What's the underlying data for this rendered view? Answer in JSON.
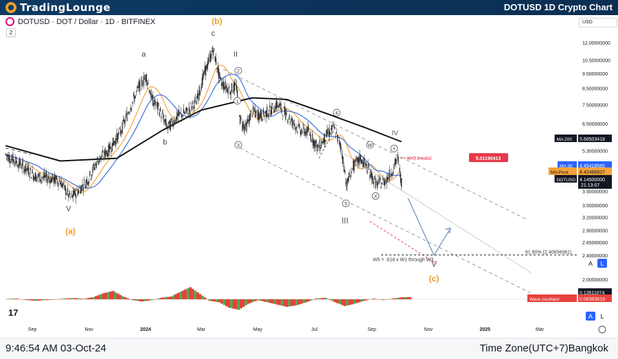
{
  "header": {
    "logo_text": "TradingLounge",
    "chart_title": "DOTUSD 1D Crypto Chart"
  },
  "symbol_bar": {
    "symbol_text": "DOTUSD · DOT / Dollar · 1D · BITFINEX",
    "indicator_count": "2",
    "currency": "USD"
  },
  "footer": {
    "time": "9:46:54 AM 03-Oct-24",
    "timezone": "Time Zone(UTC+7)Bangkok"
  },
  "axis_buttons": {
    "auto": "A",
    "log": "L"
  },
  "watermark": "17",
  "colors": {
    "header_bg": "#0e3a63",
    "accent_orange": "#e9a02c",
    "ma200": "#111111",
    "ma35": "#3b6fe0",
    "ma_pivot": "#f2a33a",
    "invalid_red": "#e53a4a",
    "osc_green": "#4caf50",
    "osc_red": "#e8413c",
    "arrow": "#8aa4c8"
  },
  "chart_data": {
    "type": "line",
    "title": "DOTUSD · DOT / Dollar · 1D · BITFINEX",
    "x_ticks": [
      "Sep",
      "Nov",
      "2024",
      "Mar",
      "May",
      "Jul",
      "Sep",
      "Nov",
      "2025",
      "Mar"
    ],
    "y_scale": "log",
    "y_ticks": [
      12.0,
      10.5,
      9.5,
      8.5,
      7.5,
      6.5,
      5.9,
      5.3,
      4.7,
      4.3,
      3.9,
      3.5,
      3.2,
      2.9,
      2.65,
      2.4,
      2.0
    ],
    "y_tick_labels": [
      "12.00000000",
      "10.50000000",
      "9.50000000",
      "8.50000000",
      "7.50000000",
      "6.50000000",
      "5.90000000",
      "5.30000000",
      "4.70000000",
      "4.30000000",
      "3.90000000",
      "3.50000000",
      "3.20000000",
      "2.90000000",
      "2.65000000",
      "2.40000000",
      "2.00000000"
    ],
    "series": [
      {
        "name": "DOTUSD",
        "points": [
          [
            "2023-08-03",
            5.15
          ],
          [
            "2023-08-20",
            4.75
          ],
          [
            "2023-09-05",
            4.35
          ],
          [
            "2023-09-20",
            4.3
          ],
          [
            "2023-10-01",
            4.2
          ],
          [
            "2023-10-12",
            3.7
          ],
          [
            "2023-10-20",
            3.9
          ],
          [
            "2023-11-01",
            4.3
          ],
          [
            "2023-11-10",
            4.9
          ],
          [
            "2023-11-22",
            5.3
          ],
          [
            "2023-12-05",
            6.1
          ],
          [
            "2023-12-15",
            7.3
          ],
          [
            "2023-12-25",
            8.6
          ],
          [
            "2024-01-02",
            9.3
          ],
          [
            "2024-01-08",
            7.8
          ],
          [
            "2024-01-15",
            7.3
          ],
          [
            "2024-01-25",
            6.3
          ],
          [
            "2024-02-05",
            6.9
          ],
          [
            "2024-02-15",
            7.1
          ],
          [
            "2024-02-25",
            7.7
          ],
          [
            "2024-03-05",
            9.6
          ],
          [
            "2024-03-14",
            11.4
          ],
          [
            "2024-03-22",
            8.9
          ],
          [
            "2024-04-01",
            8.4
          ],
          [
            "2024-04-08",
            8.6
          ],
          [
            "2024-04-12",
            6.7
          ],
          [
            "2024-04-18",
            6.3
          ],
          [
            "2024-04-25",
            7.1
          ],
          [
            "2024-05-05",
            6.9
          ],
          [
            "2024-05-15",
            7.2
          ],
          [
            "2024-05-22",
            7.5
          ],
          [
            "2024-05-28",
            7.2
          ],
          [
            "2024-06-07",
            6.6
          ],
          [
            "2024-06-15",
            6.2
          ],
          [
            "2024-06-25",
            6.1
          ],
          [
            "2024-07-05",
            5.4
          ],
          [
            "2024-07-15",
            6.0
          ],
          [
            "2024-07-22",
            6.3
          ],
          [
            "2024-07-30",
            5.4
          ],
          [
            "2024-08-05",
            4.1
          ],
          [
            "2024-08-12",
            4.7
          ],
          [
            "2024-08-20",
            5.0
          ],
          [
            "2024-08-28",
            4.6
          ],
          [
            "2024-09-06",
            4.1
          ],
          [
            "2024-09-15",
            4.2
          ],
          [
            "2024-09-22",
            4.5
          ],
          [
            "2024-09-29",
            5.0
          ],
          [
            "2024-10-03",
            4.145
          ]
        ]
      },
      {
        "name": "MA:200",
        "last_value": 5.66503418
      },
      {
        "name": "MA:35",
        "last_value": 4.45418585
      },
      {
        "name": "MA:Pivot",
        "last_value": 4.42466827
      }
    ],
    "price_labels": {
      "wc_invalid": "5.01190413",
      "ma200": "5.66503418",
      "ma35": "4.45418585",
      "ma_pivot": "4.42466827",
      "dotusd": "4.14500000",
      "countdown": "21:13:07",
      "osc1": "0.13511074",
      "osc2": "0.06363619"
    },
    "price_tags": {
      "ma200": "MA:200",
      "ma35": "MA:35",
      "ma_pivot": "MA:Pivot",
      "dotusd": "DOTUSD",
      "wave_osc": "Wave oscillator"
    },
    "wave_labels": [
      "(a)",
      "(b)",
      "(c)",
      "a",
      "b",
      "c",
      "I",
      "II",
      "III",
      "IV",
      "V",
      "V",
      "1",
      "2",
      "3",
      "4",
      "5",
      "W",
      "X",
      "Y"
    ],
    "annotations": {
      "wc_invalid": "W.C.Invalid",
      "fib": "61.80% (2.40656061)",
      "w5_text": "W5 = .618 x W1 through W3"
    },
    "oscillator": {
      "name": "Wave oscillator",
      "values": [
        0.02,
        0.05,
        -0.05,
        -0.1,
        -0.05,
        -0.02,
        0.05,
        0.08,
        0.03,
        0.15,
        0.4,
        0.55,
        0.2,
        -0.05,
        -0.15,
        -0.05,
        0.1,
        0.18,
        0.5,
        0.8,
        0.35,
        -0.1,
        -0.2,
        -0.55,
        -0.7,
        -0.3,
        -0.05,
        -0.2,
        -0.35,
        -0.5,
        -0.4,
        -0.2,
        0.05,
        0.1,
        -0.2,
        -0.45,
        -0.3,
        -0.1,
        0.05,
        -0.05,
        0.05,
        0.14
      ]
    }
  }
}
